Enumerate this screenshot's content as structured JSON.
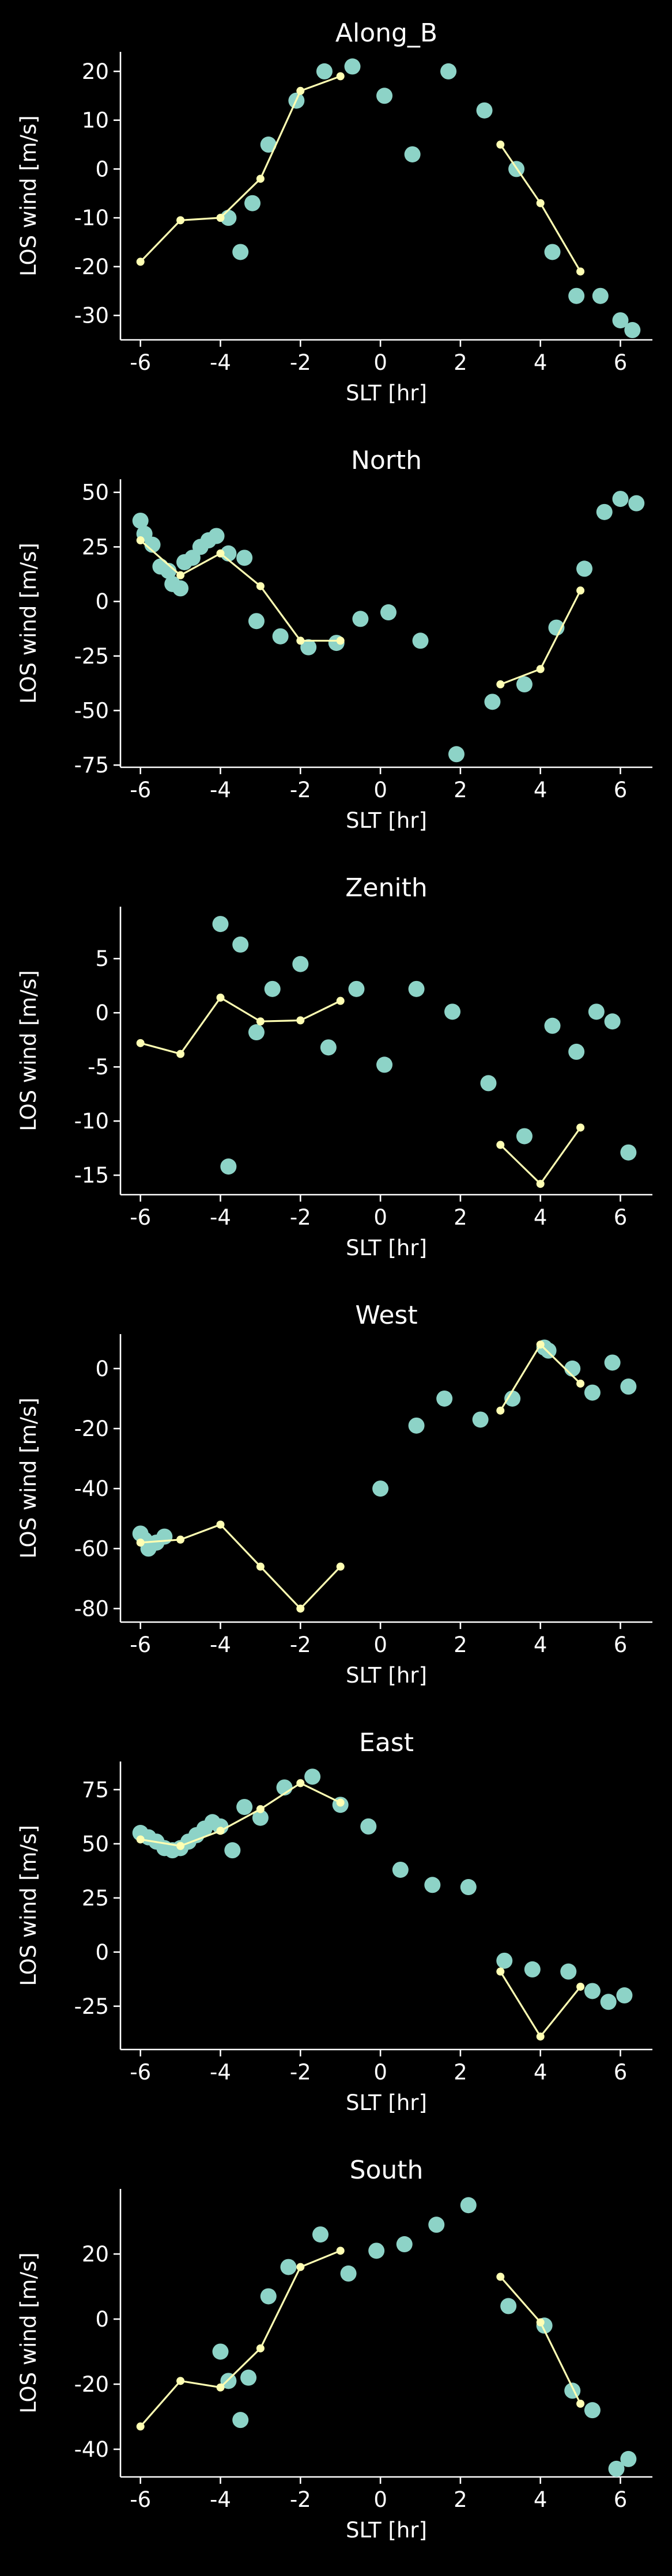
{
  "style": {
    "background": "#000000",
    "foreground": "#ffffff",
    "observed_color": "#8dd3c7",
    "model_color": "#ffffb3"
  },
  "chart_data": [
    {
      "type": "scatter",
      "title": "Along_B",
      "xlabel": "SLT [hr]",
      "ylabel": "LOS wind [m/s]",
      "xlim": [
        -6.5,
        6.8
      ],
      "ylim": [
        -35,
        24
      ],
      "xticks": [
        -6,
        -4,
        -2,
        0,
        2,
        4,
        6
      ],
      "yticks": [
        -30,
        -20,
        -10,
        0,
        10,
        20
      ],
      "series": [
        {
          "kind": "points",
          "x": [
            -3.8,
            -3.5,
            -3.2,
            -2.8,
            -2.1,
            -1.4,
            -0.7,
            0.1,
            0.8,
            1.7,
            2.6,
            3.4,
            4.3,
            4.9,
            5.5,
            6.0,
            6.3
          ],
          "y": [
            -10,
            -17,
            -7,
            5,
            14,
            20,
            21,
            15,
            3,
            20,
            12,
            0,
            -17,
            -26,
            -26,
            -31,
            -33
          ]
        },
        {
          "kind": "line",
          "segments": [
            {
              "x": [
                -6,
                -5,
                -4,
                -3,
                -2,
                -1
              ],
              "y": [
                -19,
                -10.5,
                -10,
                -2,
                16,
                19
              ]
            },
            {
              "x": [
                3,
                4,
                5
              ],
              "y": [
                5,
                -7,
                -21
              ]
            }
          ]
        }
      ]
    },
    {
      "type": "scatter",
      "title": "North",
      "xlabel": "SLT [hr]",
      "ylabel": "LOS wind [m/s]",
      "xlim": [
        -6.5,
        6.8
      ],
      "ylim": [
        -76,
        56
      ],
      "xticks": [
        -6,
        -4,
        -2,
        0,
        2,
        4,
        6
      ],
      "yticks": [
        -75,
        -50,
        -25,
        0,
        25,
        50
      ],
      "series": [
        {
          "kind": "points",
          "x": [
            -6.0,
            -5.9,
            -5.7,
            -5.5,
            -5.3,
            -5.2,
            -5.0,
            -4.9,
            -4.7,
            -4.5,
            -4.3,
            -4.1,
            -3.8,
            -3.4,
            -3.1,
            -2.5,
            -1.8,
            -1.1,
            -0.5,
            0.2,
            1.0,
            1.9,
            2.8,
            3.6,
            4.4,
            5.1,
            5.6,
            6.0,
            6.4
          ],
          "y": [
            37,
            31,
            26,
            16,
            14,
            8,
            6,
            18,
            20,
            25,
            28,
            30,
            22,
            20,
            -9,
            -16,
            -21,
            -19,
            -8,
            -5,
            -18,
            -70,
            -46,
            -38,
            -12,
            15,
            41,
            47,
            45
          ]
        },
        {
          "kind": "line",
          "segments": [
            {
              "x": [
                -6,
                -5,
                -4,
                -3,
                -2,
                -1
              ],
              "y": [
                28,
                12,
                22,
                7,
                -18,
                -18
              ]
            },
            {
              "x": [
                3,
                4,
                5
              ],
              "y": [
                -38,
                -31,
                5
              ]
            }
          ]
        }
      ]
    },
    {
      "type": "scatter",
      "title": "Zenith",
      "xlabel": "SLT [hr]",
      "ylabel": "LOS wind [m/s]",
      "xlim": [
        -6.5,
        6.8
      ],
      "ylim": [
        -16.8,
        9.8
      ],
      "xticks": [
        -6,
        -4,
        -2,
        0,
        2,
        4,
        6
      ],
      "yticks": [
        -15,
        -10,
        -5,
        0,
        5
      ],
      "series": [
        {
          "kind": "points",
          "x": [
            -4.0,
            -3.8,
            -3.5,
            -3.1,
            -2.7,
            -2.0,
            -1.3,
            -0.6,
            0.1,
            0.9,
            1.8,
            2.7,
            3.6,
            4.3,
            4.9,
            5.4,
            5.8,
            6.2
          ],
          "y": [
            8.2,
            -14.2,
            6.3,
            -1.8,
            2.2,
            4.5,
            -3.2,
            2.2,
            -4.8,
            2.2,
            0.1,
            -6.5,
            -11.4,
            -1.2,
            -3.6,
            0.1,
            -0.8,
            -12.9
          ]
        },
        {
          "kind": "line",
          "segments": [
            {
              "x": [
                -6,
                -5,
                -4,
                -3,
                -2,
                -1
              ],
              "y": [
                -2.8,
                -3.8,
                1.4,
                -0.8,
                -0.7,
                1.1
              ]
            },
            {
              "x": [
                3,
                4,
                5
              ],
              "y": [
                -12.2,
                -15.8,
                -10.6
              ]
            }
          ]
        }
      ]
    },
    {
      "type": "scatter",
      "title": "West",
      "xlabel": "SLT [hr]",
      "ylabel": "LOS wind [m/s]",
      "xlim": [
        -6.5,
        6.8
      ],
      "ylim": [
        -84.5,
        11.5
      ],
      "xticks": [
        -6,
        -4,
        -2,
        0,
        2,
        4,
        6
      ],
      "yticks": [
        -80,
        -60,
        -40,
        -20,
        0
      ],
      "series": [
        {
          "kind": "points",
          "x": [
            -6.0,
            -5.9,
            -5.8,
            -5.6,
            -5.4,
            0.0,
            0.9,
            1.6,
            2.5,
            3.3,
            4.1,
            4.2,
            4.8,
            5.3,
            5.8,
            6.2
          ],
          "y": [
            -55,
            -57,
            -60,
            -58,
            -56,
            -40,
            -19,
            -10,
            -17,
            -10,
            7,
            6,
            0,
            -8,
            2,
            -6
          ]
        },
        {
          "kind": "line",
          "segments": [
            {
              "x": [
                -6,
                -5,
                -4,
                -3,
                -2,
                -1
              ],
              "y": [
                -58,
                -57,
                -52,
                -66,
                -80,
                -66
              ]
            },
            {
              "x": [
                3,
                4,
                5
              ],
              "y": [
                -14,
                8,
                -5
              ]
            }
          ]
        }
      ]
    },
    {
      "type": "scatter",
      "title": "East",
      "xlabel": "SLT [hr]",
      "ylabel": "LOS wind [m/s]",
      "xlim": [
        -6.5,
        6.8
      ],
      "ylim": [
        -45,
        88
      ],
      "xticks": [
        -6,
        -4,
        -2,
        0,
        2,
        4,
        6
      ],
      "yticks": [
        -25,
        0,
        25,
        50,
        75
      ],
      "series": [
        {
          "kind": "points",
          "x": [
            -6.0,
            -5.8,
            -5.6,
            -5.4,
            -5.2,
            -5.0,
            -4.8,
            -4.6,
            -4.4,
            -4.2,
            -4.0,
            -3.7,
            -3.4,
            -3.0,
            -2.4,
            -1.7,
            -1.0,
            -0.3,
            0.5,
            1.3,
            2.2,
            3.1,
            3.8,
            4.7,
            5.3,
            5.7,
            6.1
          ],
          "y": [
            55,
            53,
            51,
            48,
            47,
            48,
            51,
            54,
            57,
            60,
            58,
            47,
            67,
            62,
            76,
            81,
            68,
            58,
            38,
            31,
            30,
            -4,
            -8,
            -9,
            -18,
            -23,
            -20
          ]
        },
        {
          "kind": "line",
          "segments": [
            {
              "x": [
                -6,
                -5,
                -4,
                -3,
                -2,
                -1
              ],
              "y": [
                52,
                49,
                56,
                66,
                78,
                69
              ]
            },
            {
              "x": [
                3,
                4,
                5
              ],
              "y": [
                -9,
                -39,
                -16
              ]
            }
          ]
        }
      ]
    },
    {
      "type": "scatter",
      "title": "South",
      "xlabel": "SLT [hr]",
      "ylabel": "LOS wind [m/s]",
      "xlim": [
        -6.5,
        6.8
      ],
      "ylim": [
        -48.5,
        40
      ],
      "xticks": [
        -6,
        -4,
        -2,
        0,
        2,
        4,
        6
      ],
      "yticks": [
        -40,
        -20,
        0,
        20
      ],
      "series": [
        {
          "kind": "points",
          "x": [
            -4.0,
            -3.8,
            -3.5,
            -3.3,
            -2.8,
            -2.3,
            -1.5,
            -0.8,
            -0.1,
            0.6,
            1.4,
            2.2,
            3.2,
            4.1,
            4.8,
            5.3,
            5.9,
            6.2
          ],
          "y": [
            -10,
            -19,
            -31,
            -18,
            7,
            16,
            26,
            14,
            21,
            23,
            29,
            35,
            4,
            -2,
            -22,
            -28,
            -46,
            -43
          ]
        },
        {
          "kind": "line",
          "segments": [
            {
              "x": [
                -6,
                -5,
                -4,
                -3,
                -2,
                -1
              ],
              "y": [
                -33,
                -19,
                -21,
                -9,
                16,
                21
              ]
            },
            {
              "x": [
                3,
                4,
                5
              ],
              "y": [
                13,
                -1,
                -26
              ]
            }
          ]
        }
      ]
    }
  ]
}
